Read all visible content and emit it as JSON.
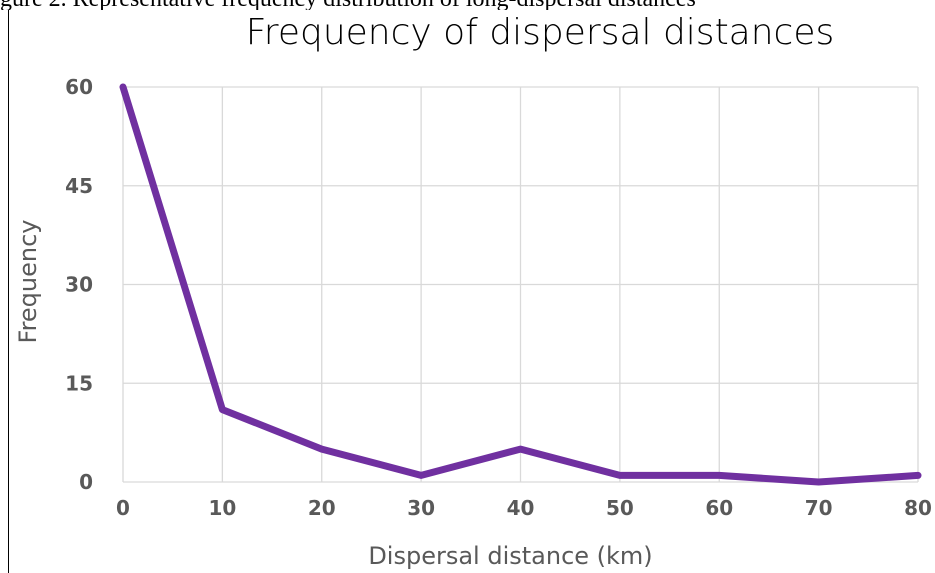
{
  "caption_fragment": "gure 2. Representative frequency distribution of long-dispersal distances",
  "chart_data": {
    "type": "line",
    "title": "Frequency of dispersal distances",
    "xlabel": "Dispersal distance (km)",
    "ylabel": "Frequency",
    "x": [
      0,
      10,
      20,
      30,
      40,
      50,
      60,
      70,
      80
    ],
    "series": [
      {
        "values": [
          60,
          11,
          5,
          1,
          5,
          1,
          1,
          0,
          1
        ],
        "color": "#7030A0"
      }
    ],
    "xlim": [
      0,
      80
    ],
    "ylim": [
      0,
      60
    ],
    "yticks": [
      0,
      15,
      30,
      45,
      60
    ],
    "xticks": [
      0,
      10,
      20,
      30,
      40,
      50,
      60,
      70,
      80
    ],
    "grid": true,
    "legend": "none",
    "colors": {
      "line": "#7030A0",
      "grid": "#D9D9D9",
      "tick_text": "#595959"
    }
  }
}
